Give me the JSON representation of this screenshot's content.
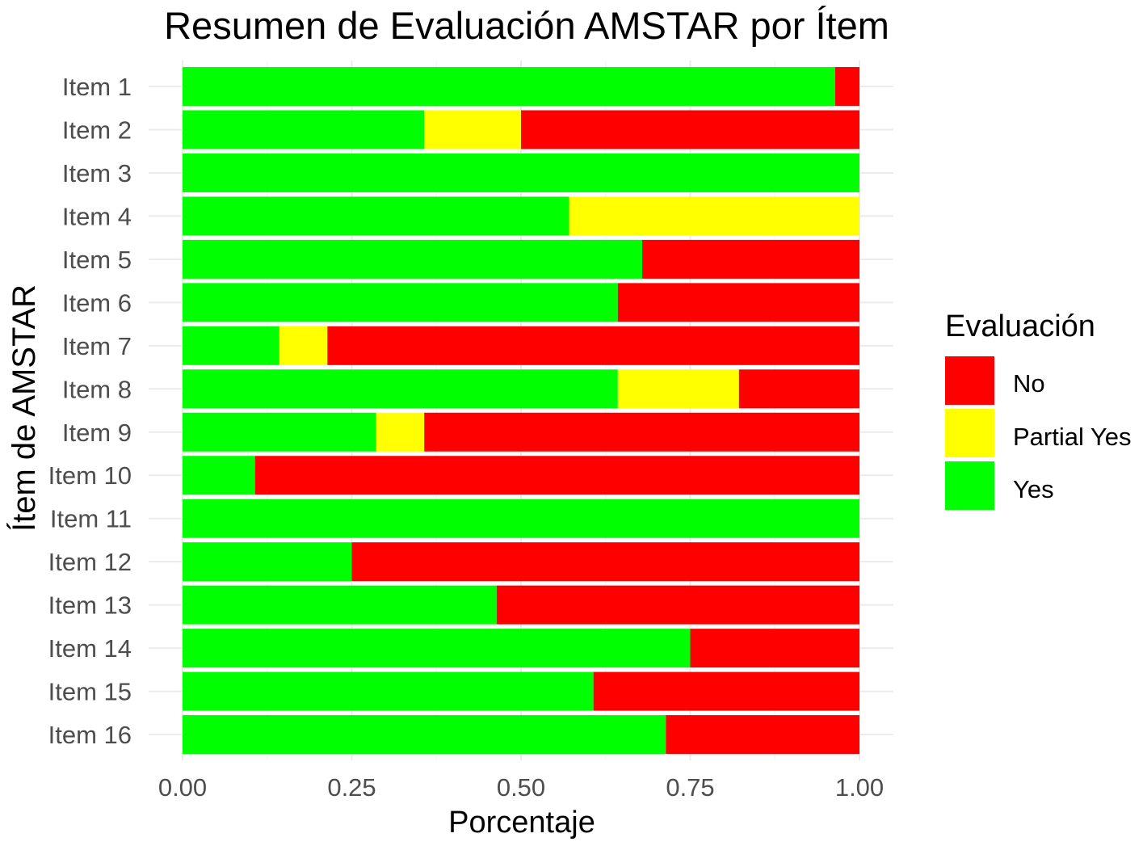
{
  "chart_data": {
    "type": "bar",
    "orientation": "horizontal",
    "stacked": true,
    "title": "Resumen de Evaluación AMSTAR por Ítem",
    "xlabel": "Porcentaje",
    "ylabel": "Ítem de AMSTAR",
    "categories": [
      "Item 1",
      "Item 2",
      "Item 3",
      "Item 4",
      "Item 5",
      "Item 6",
      "Item 7",
      "Item 8",
      "Item 9",
      "Item 10",
      "Item 11",
      "Item 12",
      "Item 13",
      "Item 14",
      "Item 15",
      "Item 16"
    ],
    "series": [
      {
        "name": "Yes",
        "color": "#00FF00",
        "values": [
          0.964,
          0.357,
          1.0,
          0.571,
          0.679,
          0.643,
          0.143,
          0.643,
          0.286,
          0.107,
          1.0,
          0.25,
          0.464,
          0.75,
          0.607,
          0.714
        ]
      },
      {
        "name": "Partial Yes",
        "color": "#FFFF00",
        "values": [
          0,
          0.143,
          0,
          0.429,
          0,
          0,
          0.071,
          0.179,
          0.071,
          0,
          0,
          0,
          0,
          0,
          0,
          0
        ]
      },
      {
        "name": "No",
        "color": "#FF0000",
        "values": [
          0.036,
          0.5,
          0,
          0,
          0.321,
          0.357,
          0.786,
          0.179,
          0.643,
          0.893,
          0,
          0.75,
          0.536,
          0.25,
          0.393,
          0.286
        ]
      }
    ],
    "xlim": [
      0,
      1
    ],
    "xticks": [
      0,
      0.25,
      0.5,
      0.75,
      1
    ],
    "xtick_labels": [
      "0.00",
      "0.25",
      "0.50",
      "0.75",
      "1.00"
    ],
    "grid": true,
    "legend": {
      "title": "Evaluación",
      "position": "right"
    }
  }
}
